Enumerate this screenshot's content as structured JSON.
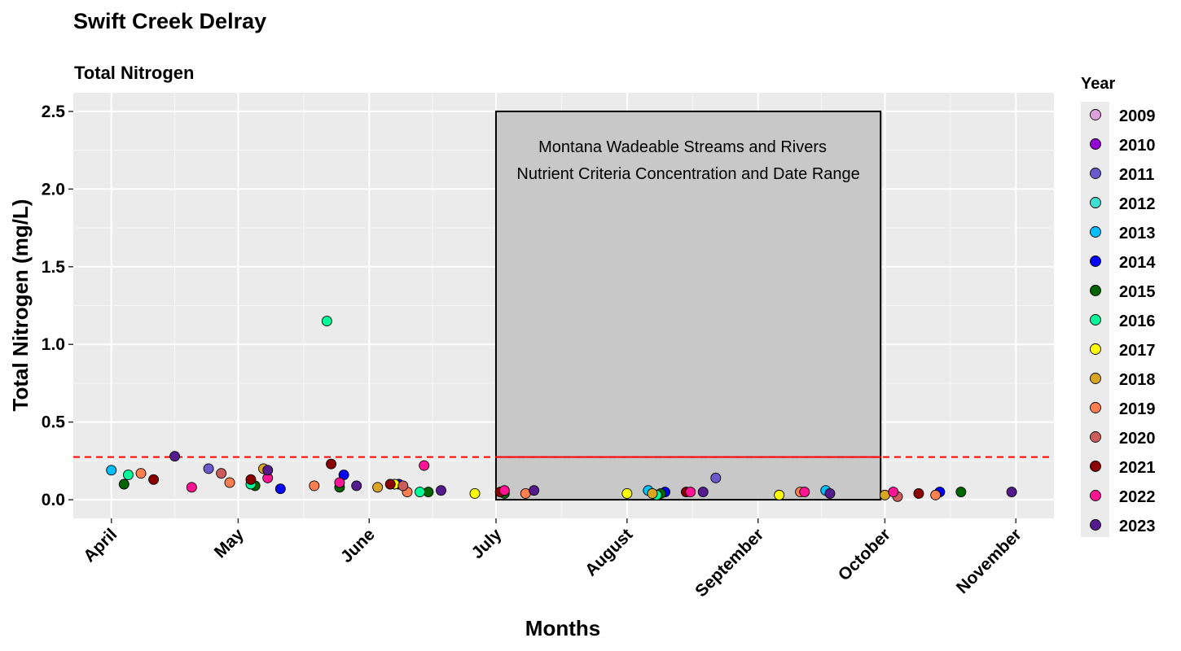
{
  "chart_data": {
    "type": "scatter",
    "title": "Swift Creek Delray",
    "subtitle": "Total Nitrogen",
    "xlabel": "Months",
    "ylabel": "Total Nitrogen (mg/L)",
    "x_ticks": [
      "April",
      "May",
      "June",
      "July",
      "August",
      "September",
      "October",
      "November"
    ],
    "x_range": [
      "2000-03-23",
      "2000-11-10"
    ],
    "ylim": [
      -0.12,
      2.62
    ],
    "y_ticks": [
      0.0,
      0.5,
      1.0,
      1.5,
      2.0,
      2.5
    ],
    "legend": {
      "title": "Year",
      "position": "right"
    },
    "criteria_box": {
      "x_start": "2000-07-01",
      "x_end": "2000-09-30",
      "y_min": 0.0,
      "y_max": 2.5,
      "fill": "#c8c8c8",
      "label_line1": "Montana Wadeable Streams and Rivers",
      "label_line2": "Nutrient Criteria Concentration and Date Range"
    },
    "threshold": {
      "y": 0.275,
      "color": "#ff0000"
    },
    "series": [
      {
        "name": "2009",
        "color": "#dda0dd",
        "points": []
      },
      {
        "name": "2010",
        "color": "#9400d3",
        "points": []
      },
      {
        "name": "2011",
        "color": "#6a5acd",
        "points": [
          {
            "x": "2000-04-24",
            "y": 0.2
          },
          {
            "x": "2000-08-22",
            "y": 0.14
          }
        ]
      },
      {
        "name": "2012",
        "color": "#40e0d0",
        "points": []
      },
      {
        "name": "2013",
        "color": "#00bfff",
        "points": [
          {
            "x": "2000-04-01",
            "y": 0.19
          },
          {
            "x": "2000-08-06",
            "y": 0.06
          },
          {
            "x": "2000-09-17",
            "y": 0.06
          }
        ]
      },
      {
        "name": "2014",
        "color": "#0000ff",
        "points": [
          {
            "x": "2000-05-11",
            "y": 0.07
          },
          {
            "x": "2000-05-26",
            "y": 0.16
          },
          {
            "x": "2000-06-08",
            "y": 0.1
          },
          {
            "x": "2000-08-10",
            "y": 0.05
          },
          {
            "x": "2000-10-14",
            "y": 0.05
          }
        ]
      },
      {
        "name": "2015",
        "color": "#006400",
        "points": [
          {
            "x": "2000-04-04",
            "y": 0.1
          },
          {
            "x": "2000-05-05",
            "y": 0.09
          },
          {
            "x": "2000-05-25",
            "y": 0.08
          },
          {
            "x": "2000-06-15",
            "y": 0.05
          },
          {
            "x": "2000-07-03",
            "y": 0.04
          },
          {
            "x": "2000-08-09",
            "y": 0.04
          },
          {
            "x": "2000-10-19",
            "y": 0.05
          }
        ]
      },
      {
        "name": "2016",
        "color": "#00fa9a",
        "points": [
          {
            "x": "2000-04-05",
            "y": 0.16
          },
          {
            "x": "2000-05-04",
            "y": 0.1
          },
          {
            "x": "2000-05-22",
            "y": 1.15
          },
          {
            "x": "2000-06-13",
            "y": 0.05
          },
          {
            "x": "2000-08-08",
            "y": 0.03
          }
        ]
      },
      {
        "name": "2017",
        "color": "#ffff00",
        "points": [
          {
            "x": "2000-06-07",
            "y": 0.1
          },
          {
            "x": "2000-06-26",
            "y": 0.04
          },
          {
            "x": "2000-08-01",
            "y": 0.04
          },
          {
            "x": "2000-09-06",
            "y": 0.03
          }
        ]
      },
      {
        "name": "2018",
        "color": "#daa520",
        "points": [
          {
            "x": "2000-05-07",
            "y": 0.2
          },
          {
            "x": "2000-06-03",
            "y": 0.08
          },
          {
            "x": "2000-08-07",
            "y": 0.04
          },
          {
            "x": "2000-10-01",
            "y": 0.03
          }
        ]
      },
      {
        "name": "2019",
        "color": "#ff7f50",
        "points": [
          {
            "x": "2000-04-08",
            "y": 0.17
          },
          {
            "x": "2000-04-29",
            "y": 0.11
          },
          {
            "x": "2000-05-19",
            "y": 0.09
          },
          {
            "x": "2000-06-10",
            "y": 0.05
          },
          {
            "x": "2000-07-08",
            "y": 0.04
          },
          {
            "x": "2000-09-11",
            "y": 0.05
          },
          {
            "x": "2000-10-13",
            "y": 0.03
          }
        ]
      },
      {
        "name": "2020",
        "color": "#cd5c5c",
        "points": [
          {
            "x": "2000-04-27",
            "y": 0.17
          },
          {
            "x": "2000-06-09",
            "y": 0.09
          },
          {
            "x": "2000-10-04",
            "y": 0.02
          }
        ]
      },
      {
        "name": "2021",
        "color": "#8b0000",
        "points": [
          {
            "x": "2000-04-11",
            "y": 0.13
          },
          {
            "x": "2000-05-04",
            "y": 0.13
          },
          {
            "x": "2000-05-23",
            "y": 0.23
          },
          {
            "x": "2000-06-06",
            "y": 0.1
          },
          {
            "x": "2000-07-02",
            "y": 0.05
          },
          {
            "x": "2000-08-15",
            "y": 0.05
          },
          {
            "x": "2000-10-09",
            "y": 0.04
          }
        ]
      },
      {
        "name": "2022",
        "color": "#ff1493",
        "points": [
          {
            "x": "2000-04-20",
            "y": 0.08
          },
          {
            "x": "2000-05-08",
            "y": 0.14
          },
          {
            "x": "2000-05-25",
            "y": 0.11
          },
          {
            "x": "2000-06-14",
            "y": 0.22
          },
          {
            "x": "2000-07-03",
            "y": 0.06
          },
          {
            "x": "2000-08-16",
            "y": 0.05
          },
          {
            "x": "2000-09-12",
            "y": 0.05
          },
          {
            "x": "2000-10-03",
            "y": 0.05
          }
        ]
      },
      {
        "name": "2023",
        "color": "#551a8b",
        "points": [
          {
            "x": "2000-04-16",
            "y": 0.28
          },
          {
            "x": "2000-05-08",
            "y": 0.19
          },
          {
            "x": "2000-05-29",
            "y": 0.09
          },
          {
            "x": "2000-06-18",
            "y": 0.06
          },
          {
            "x": "2000-07-10",
            "y": 0.06
          },
          {
            "x": "2000-08-19",
            "y": 0.05
          },
          {
            "x": "2000-09-18",
            "y": 0.04
          },
          {
            "x": "2000-10-31",
            "y": 0.05
          }
        ]
      }
    ]
  }
}
